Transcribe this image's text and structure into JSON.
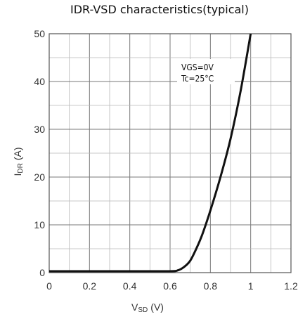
{
  "chart_data": {
    "type": "line",
    "title": "IDR-VSD characteristics(typical)",
    "xlabel": "VSD (V)",
    "xlabel_main": "V",
    "xlabel_sub": "SD",
    "xlabel_unit": "(V)",
    "ylabel": "IDR (A)",
    "ylabel_main": "I",
    "ylabel_sub": "DR",
    "ylabel_unit": "(A)",
    "xlim": [
      0,
      1.2
    ],
    "ylim": [
      0,
      50
    ],
    "xticks": [
      "0",
      "0.2",
      "0.4",
      "0.6",
      "0.8",
      "1",
      "1.2"
    ],
    "yticks": [
      "0",
      "10",
      "20",
      "30",
      "40",
      "50"
    ],
    "grid": true,
    "annotations": [
      "VGS=0V",
      "Tc=25°C"
    ],
    "series": [
      {
        "x": [
          0,
          0.2,
          0.4,
          0.6,
          0.64,
          0.67,
          0.7,
          0.73,
          0.76,
          0.8,
          0.85,
          0.9,
          0.95,
          1.0
        ],
        "y": [
          0.3,
          0.3,
          0.3,
          0.3,
          0.5,
          1.2,
          2.5,
          5,
          8,
          13,
          20,
          28,
          38,
          50
        ]
      }
    ]
  }
}
